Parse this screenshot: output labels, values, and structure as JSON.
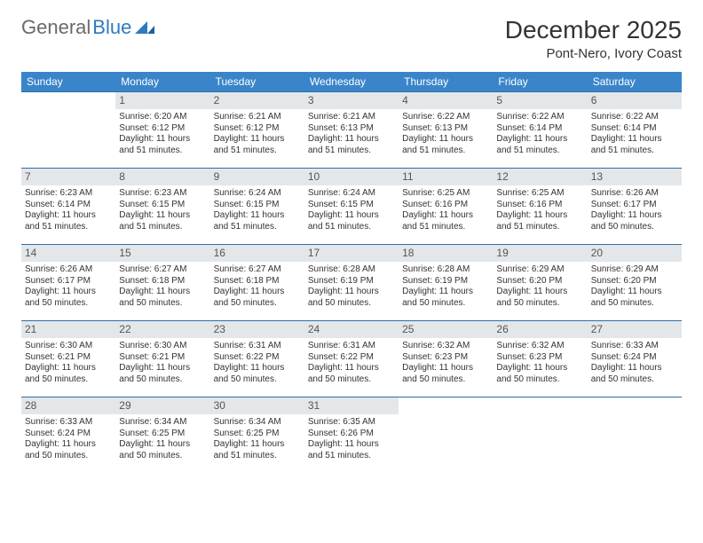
{
  "logo": {
    "part1": "General",
    "part2": "Blue"
  },
  "title": "December 2025",
  "location": "Pont-Nero, Ivory Coast",
  "colors": {
    "header_bg": "#3a85c9",
    "header_text": "#ffffff",
    "daynum_bg": "#e4e7ea",
    "cell_border": "#2e6da4",
    "logo_gray": "#6a6a6a",
    "logo_blue": "#2f7abf"
  },
  "weekdays": [
    "Sunday",
    "Monday",
    "Tuesday",
    "Wednesday",
    "Thursday",
    "Friday",
    "Saturday"
  ],
  "weeks": [
    [
      null,
      {
        "n": "1",
        "sr": "Sunrise: 6:20 AM",
        "ss": "Sunset: 6:12 PM",
        "dl": "Daylight: 11 hours and 51 minutes."
      },
      {
        "n": "2",
        "sr": "Sunrise: 6:21 AM",
        "ss": "Sunset: 6:12 PM",
        "dl": "Daylight: 11 hours and 51 minutes."
      },
      {
        "n": "3",
        "sr": "Sunrise: 6:21 AM",
        "ss": "Sunset: 6:13 PM",
        "dl": "Daylight: 11 hours and 51 minutes."
      },
      {
        "n": "4",
        "sr": "Sunrise: 6:22 AM",
        "ss": "Sunset: 6:13 PM",
        "dl": "Daylight: 11 hours and 51 minutes."
      },
      {
        "n": "5",
        "sr": "Sunrise: 6:22 AM",
        "ss": "Sunset: 6:14 PM",
        "dl": "Daylight: 11 hours and 51 minutes."
      },
      {
        "n": "6",
        "sr": "Sunrise: 6:22 AM",
        "ss": "Sunset: 6:14 PM",
        "dl": "Daylight: 11 hours and 51 minutes."
      }
    ],
    [
      {
        "n": "7",
        "sr": "Sunrise: 6:23 AM",
        "ss": "Sunset: 6:14 PM",
        "dl": "Daylight: 11 hours and 51 minutes."
      },
      {
        "n": "8",
        "sr": "Sunrise: 6:23 AM",
        "ss": "Sunset: 6:15 PM",
        "dl": "Daylight: 11 hours and 51 minutes."
      },
      {
        "n": "9",
        "sr": "Sunrise: 6:24 AM",
        "ss": "Sunset: 6:15 PM",
        "dl": "Daylight: 11 hours and 51 minutes."
      },
      {
        "n": "10",
        "sr": "Sunrise: 6:24 AM",
        "ss": "Sunset: 6:15 PM",
        "dl": "Daylight: 11 hours and 51 minutes."
      },
      {
        "n": "11",
        "sr": "Sunrise: 6:25 AM",
        "ss": "Sunset: 6:16 PM",
        "dl": "Daylight: 11 hours and 51 minutes."
      },
      {
        "n": "12",
        "sr": "Sunrise: 6:25 AM",
        "ss": "Sunset: 6:16 PM",
        "dl": "Daylight: 11 hours and 51 minutes."
      },
      {
        "n": "13",
        "sr": "Sunrise: 6:26 AM",
        "ss": "Sunset: 6:17 PM",
        "dl": "Daylight: 11 hours and 50 minutes."
      }
    ],
    [
      {
        "n": "14",
        "sr": "Sunrise: 6:26 AM",
        "ss": "Sunset: 6:17 PM",
        "dl": "Daylight: 11 hours and 50 minutes."
      },
      {
        "n": "15",
        "sr": "Sunrise: 6:27 AM",
        "ss": "Sunset: 6:18 PM",
        "dl": "Daylight: 11 hours and 50 minutes."
      },
      {
        "n": "16",
        "sr": "Sunrise: 6:27 AM",
        "ss": "Sunset: 6:18 PM",
        "dl": "Daylight: 11 hours and 50 minutes."
      },
      {
        "n": "17",
        "sr": "Sunrise: 6:28 AM",
        "ss": "Sunset: 6:19 PM",
        "dl": "Daylight: 11 hours and 50 minutes."
      },
      {
        "n": "18",
        "sr": "Sunrise: 6:28 AM",
        "ss": "Sunset: 6:19 PM",
        "dl": "Daylight: 11 hours and 50 minutes."
      },
      {
        "n": "19",
        "sr": "Sunrise: 6:29 AM",
        "ss": "Sunset: 6:20 PM",
        "dl": "Daylight: 11 hours and 50 minutes."
      },
      {
        "n": "20",
        "sr": "Sunrise: 6:29 AM",
        "ss": "Sunset: 6:20 PM",
        "dl": "Daylight: 11 hours and 50 minutes."
      }
    ],
    [
      {
        "n": "21",
        "sr": "Sunrise: 6:30 AM",
        "ss": "Sunset: 6:21 PM",
        "dl": "Daylight: 11 hours and 50 minutes."
      },
      {
        "n": "22",
        "sr": "Sunrise: 6:30 AM",
        "ss": "Sunset: 6:21 PM",
        "dl": "Daylight: 11 hours and 50 minutes."
      },
      {
        "n": "23",
        "sr": "Sunrise: 6:31 AM",
        "ss": "Sunset: 6:22 PM",
        "dl": "Daylight: 11 hours and 50 minutes."
      },
      {
        "n": "24",
        "sr": "Sunrise: 6:31 AM",
        "ss": "Sunset: 6:22 PM",
        "dl": "Daylight: 11 hours and 50 minutes."
      },
      {
        "n": "25",
        "sr": "Sunrise: 6:32 AM",
        "ss": "Sunset: 6:23 PM",
        "dl": "Daylight: 11 hours and 50 minutes."
      },
      {
        "n": "26",
        "sr": "Sunrise: 6:32 AM",
        "ss": "Sunset: 6:23 PM",
        "dl": "Daylight: 11 hours and 50 minutes."
      },
      {
        "n": "27",
        "sr": "Sunrise: 6:33 AM",
        "ss": "Sunset: 6:24 PM",
        "dl": "Daylight: 11 hours and 50 minutes."
      }
    ],
    [
      {
        "n": "28",
        "sr": "Sunrise: 6:33 AM",
        "ss": "Sunset: 6:24 PM",
        "dl": "Daylight: 11 hours and 50 minutes."
      },
      {
        "n": "29",
        "sr": "Sunrise: 6:34 AM",
        "ss": "Sunset: 6:25 PM",
        "dl": "Daylight: 11 hours and 50 minutes."
      },
      {
        "n": "30",
        "sr": "Sunrise: 6:34 AM",
        "ss": "Sunset: 6:25 PM",
        "dl": "Daylight: 11 hours and 51 minutes."
      },
      {
        "n": "31",
        "sr": "Sunrise: 6:35 AM",
        "ss": "Sunset: 6:26 PM",
        "dl": "Daylight: 11 hours and 51 minutes."
      },
      null,
      null,
      null
    ]
  ]
}
